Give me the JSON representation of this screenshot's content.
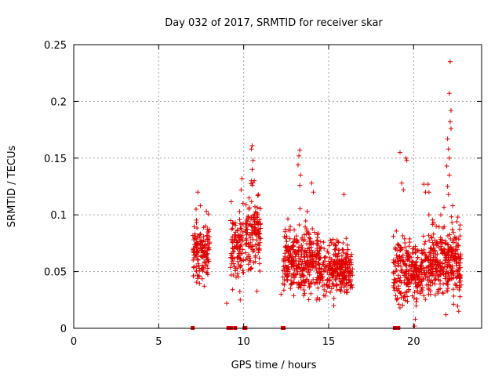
{
  "chart_data": {
    "type": "scatter",
    "title": "Day 032 of 2017, SRMTID for receiver skar",
    "xlabel": "GPS time / hours",
    "ylabel": "SRMTID / TECUs",
    "xlim": [
      0,
      24
    ],
    "ylim": [
      0,
      0.25
    ],
    "x_ticks": [
      0,
      5,
      10,
      15,
      20
    ],
    "x_tick_labels": [
      "0",
      "5",
      "10",
      "15",
      "20"
    ],
    "y_ticks": [
      0,
      0.05,
      0.1,
      0.15,
      0.2,
      0.25
    ],
    "y_tick_labels": [
      "0",
      "0.05",
      "0.1",
      "0.15",
      "0.2",
      "0.25"
    ],
    "grid": true,
    "legend": "none",
    "marker": "plus",
    "color": "#e00000",
    "clusters": [
      {
        "x_start": 7.0,
        "x_end": 8.0,
        "y_center": 0.068,
        "y_spread": 0.022,
        "count": 150
      },
      {
        "x_start": 9.2,
        "x_end": 10.0,
        "y_center": 0.07,
        "y_spread": 0.026,
        "count": 110
      },
      {
        "x_start": 10.1,
        "x_end": 11.0,
        "y_center": 0.085,
        "y_spread": 0.03,
        "count": 140
      },
      {
        "x_start": 12.3,
        "x_end": 14.4,
        "y_center": 0.06,
        "y_spread": 0.026,
        "count": 320
      },
      {
        "x_start": 14.4,
        "x_end": 16.4,
        "y_center": 0.053,
        "y_spread": 0.02,
        "count": 300
      },
      {
        "x_start": 18.8,
        "x_end": 21.0,
        "y_center": 0.05,
        "y_spread": 0.026,
        "count": 320
      },
      {
        "x_start": 21.0,
        "x_end": 22.8,
        "y_center": 0.058,
        "y_spread": 0.028,
        "count": 300
      }
    ],
    "spikes": [
      {
        "x": 9.9,
        "y": 0.132
      },
      {
        "x": 9.85,
        "y": 0.122
      },
      {
        "x": 10.5,
        "y": 0.161
      },
      {
        "x": 10.45,
        "y": 0.158
      },
      {
        "x": 10.55,
        "y": 0.148
      },
      {
        "x": 10.5,
        "y": 0.14
      },
      {
        "x": 10.45,
        "y": 0.13
      },
      {
        "x": 13.3,
        "y": 0.157
      },
      {
        "x": 13.25,
        "y": 0.152
      },
      {
        "x": 13.2,
        "y": 0.144
      },
      {
        "x": 13.35,
        "y": 0.135
      },
      {
        "x": 13.3,
        "y": 0.126
      },
      {
        "x": 14.0,
        "y": 0.128
      },
      {
        "x": 14.1,
        "y": 0.12
      },
      {
        "x": 15.9,
        "y": 0.118
      },
      {
        "x": 19.2,
        "y": 0.155
      },
      {
        "x": 19.3,
        "y": 0.128
      },
      {
        "x": 19.4,
        "y": 0.122
      },
      {
        "x": 19.55,
        "y": 0.15
      },
      {
        "x": 19.6,
        "y": 0.148
      },
      {
        "x": 20.7,
        "y": 0.12
      },
      {
        "x": 20.6,
        "y": 0.127
      },
      {
        "x": 20.85,
        "y": 0.127
      },
      {
        "x": 20.9,
        "y": 0.12
      },
      {
        "x": 7.3,
        "y": 0.12
      },
      {
        "x": 7.45,
        "y": 0.108
      },
      {
        "x": 7.2,
        "y": 0.105
      },
      {
        "x": 9.8,
        "y": 0.025
      },
      {
        "x": 9.0,
        "y": 0.022
      },
      {
        "x": 20.9,
        "y": 0.1
      },
      {
        "x": 22.0,
        "y": 0.167
      },
      {
        "x": 22.05,
        "y": 0.158
      },
      {
        "x": 22.1,
        "y": 0.15
      },
      {
        "x": 21.95,
        "y": 0.143
      },
      {
        "x": 22.1,
        "y": 0.135
      },
      {
        "x": 22.0,
        "y": 0.125
      },
      {
        "x": 22.05,
        "y": 0.118
      },
      {
        "x": 22.2,
        "y": 0.176
      },
      {
        "x": 22.15,
        "y": 0.182
      },
      {
        "x": 22.2,
        "y": 0.192
      },
      {
        "x": 22.1,
        "y": 0.207
      },
      {
        "x": 22.15,
        "y": 0.235
      },
      {
        "x": 22.3,
        "y": 0.108
      },
      {
        "x": 21.6,
        "y": 0.1
      },
      {
        "x": 22.6,
        "y": 0.098
      },
      {
        "x": 19.0,
        "y": 0.025
      },
      {
        "x": 19.2,
        "y": 0.018
      },
      {
        "x": 20.05,
        "y": 0.002
      },
      {
        "x": 20.1,
        "y": 0.008
      },
      {
        "x": 21.9,
        "y": 0.012
      },
      {
        "x": 22.65,
        "y": 0.015
      },
      {
        "x": 15.3,
        "y": 0.02
      },
      {
        "x": 14.3,
        "y": 0.025
      },
      {
        "x": 12.2,
        "y": 0.03
      }
    ],
    "zero_marks": [
      7.0,
      9.1,
      9.2,
      9.25,
      9.5,
      10.05,
      10.1,
      12.3,
      12.35,
      18.9,
      19.1
    ]
  }
}
